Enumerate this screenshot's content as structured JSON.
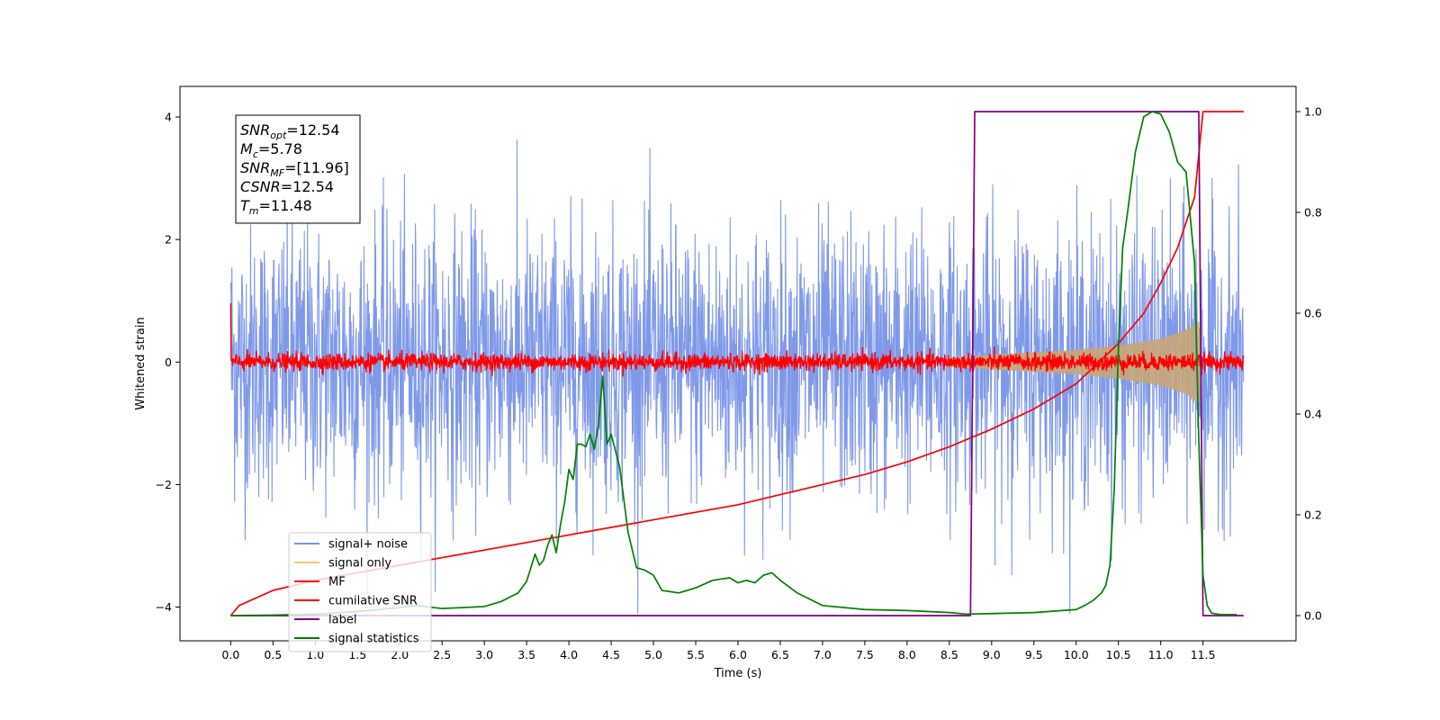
{
  "chart_data": {
    "type": "line",
    "title": "",
    "xlabel": "Time (s)",
    "ylabel": "Whitened strain",
    "xlim": [
      -0.6,
      12.6
    ],
    "ylim": [
      -4.55,
      4.5
    ],
    "y2lim": [
      -0.05,
      1.05
    ],
    "x_ticks": [
      "0.0",
      "0.5",
      "1.0",
      "1.5",
      "2.0",
      "2.5",
      "3.0",
      "3.5",
      "4.0",
      "4.5",
      "5.0",
      "5.5",
      "6.0",
      "6.5",
      "7.0",
      "7.5",
      "8.0",
      "8.5",
      "9.0",
      "9.5",
      "10.0",
      "10.5",
      "11.0",
      "11.5"
    ],
    "y_ticks": [
      "-4",
      "-2",
      "0",
      "2",
      "4"
    ],
    "y2_ticks": [
      "0.0",
      "0.2",
      "0.4",
      "0.6",
      "0.8",
      "1.0"
    ],
    "grid": false,
    "legend_placement": "lower-left",
    "annotation": {
      "lines": [
        {
          "sym": "SNR",
          "sub": "opt",
          "value": "=12.54"
        },
        {
          "sym": "M",
          "sub": "c",
          "value": "=5.78"
        },
        {
          "sym": "SNR",
          "sub": "MF",
          "value": "=[11.96]"
        },
        {
          "sym": "CSNR",
          "sub": "",
          "value": "=12.54"
        },
        {
          "sym": "T",
          "sub": "m",
          "value": "=11.48"
        }
      ]
    },
    "series": [
      {
        "name": "signal+ noise",
        "color": "#7893e8",
        "axis": "left",
        "kind": "noise",
        "amplitude_typical": 1.3,
        "amplitude_peak": 4.1,
        "x_range": [
          0.0,
          11.98
        ]
      },
      {
        "name": "signal only",
        "color": "#c8a679",
        "axis": "left",
        "kind": "chirp",
        "envelope": {
          "x": [
            8.5,
            9.0,
            9.5,
            10.0,
            10.5,
            11.0,
            11.3,
            11.45,
            11.48
          ],
          "y": [
            0.08,
            0.12,
            0.16,
            0.2,
            0.27,
            0.38,
            0.52,
            0.66,
            0.0
          ]
        }
      },
      {
        "name": "MF",
        "color": "#ff0000",
        "axis": "left",
        "kind": "noise",
        "amplitude_typical": 0.08,
        "amplitude_peak": 0.25,
        "x_range": [
          0.0,
          11.98
        ]
      },
      {
        "name": "cumilative SNR",
        "color": "#ff0000",
        "axis": "right",
        "x": [
          0.0,
          0.1,
          0.5,
          1.0,
          1.5,
          2.0,
          2.5,
          3.0,
          3.5,
          4.0,
          4.5,
          5.0,
          5.5,
          6.0,
          6.5,
          7.0,
          7.5,
          8.0,
          8.5,
          9.0,
          9.5,
          10.0,
          10.5,
          10.8,
          11.0,
          11.2,
          11.4,
          11.5,
          11.98
        ],
        "y": [
          0.0,
          0.02,
          0.05,
          0.07,
          0.085,
          0.1,
          0.115,
          0.13,
          0.145,
          0.16,
          0.175,
          0.19,
          0.205,
          0.22,
          0.24,
          0.26,
          0.28,
          0.305,
          0.335,
          0.37,
          0.41,
          0.46,
          0.54,
          0.6,
          0.66,
          0.73,
          0.83,
          1.0,
          1.0
        ]
      },
      {
        "name": "label",
        "color": "#800080",
        "axis": "right",
        "x": [
          0.0,
          8.75,
          8.8,
          11.45,
          11.5,
          11.98
        ],
        "y": [
          0.0,
          0.0,
          1.0,
          1.0,
          0.0,
          0.0
        ]
      },
      {
        "name": "signal statistics",
        "color": "#008000",
        "axis": "right",
        "x": [
          0.0,
          0.5,
          1.0,
          1.5,
          2.0,
          2.2,
          2.5,
          3.0,
          3.2,
          3.4,
          3.5,
          3.6,
          3.65,
          3.7,
          3.75,
          3.8,
          3.85,
          3.9,
          3.95,
          4.0,
          4.05,
          4.1,
          4.15,
          4.2,
          4.25,
          4.3,
          4.35,
          4.4,
          4.45,
          4.5,
          4.6,
          4.7,
          4.8,
          4.9,
          5.0,
          5.1,
          5.3,
          5.5,
          5.7,
          5.9,
          6.0,
          6.1,
          6.2,
          6.3,
          6.4,
          6.5,
          6.7,
          7.0,
          7.5,
          8.0,
          8.5,
          8.7,
          9.0,
          9.5,
          10.0,
          10.1,
          10.2,
          10.3,
          10.35,
          10.4,
          10.45,
          10.5,
          10.55,
          10.6,
          10.7,
          10.8,
          10.9,
          11.0,
          11.1,
          11.2,
          11.3,
          11.4,
          11.45,
          11.5,
          11.55,
          11.6,
          11.7,
          11.9
        ],
        "y": [
          0.0,
          0.001,
          0.003,
          0.008,
          0.016,
          0.02,
          0.014,
          0.018,
          0.028,
          0.045,
          0.068,
          0.122,
          0.1,
          0.11,
          0.14,
          0.16,
          0.125,
          0.18,
          0.225,
          0.29,
          0.27,
          0.34,
          0.34,
          0.335,
          0.36,
          0.33,
          0.38,
          0.475,
          0.34,
          0.36,
          0.295,
          0.165,
          0.095,
          0.09,
          0.08,
          0.05,
          0.045,
          0.055,
          0.07,
          0.075,
          0.065,
          0.07,
          0.065,
          0.08,
          0.085,
          0.07,
          0.045,
          0.02,
          0.012,
          0.01,
          0.006,
          0.003,
          0.004,
          0.006,
          0.012,
          0.02,
          0.03,
          0.045,
          0.06,
          0.1,
          0.25,
          0.53,
          0.73,
          0.79,
          0.92,
          0.99,
          1.0,
          0.995,
          0.96,
          0.9,
          0.88,
          0.7,
          0.35,
          0.08,
          0.02,
          0.005,
          0.002,
          0.002
        ]
      }
    ]
  }
}
